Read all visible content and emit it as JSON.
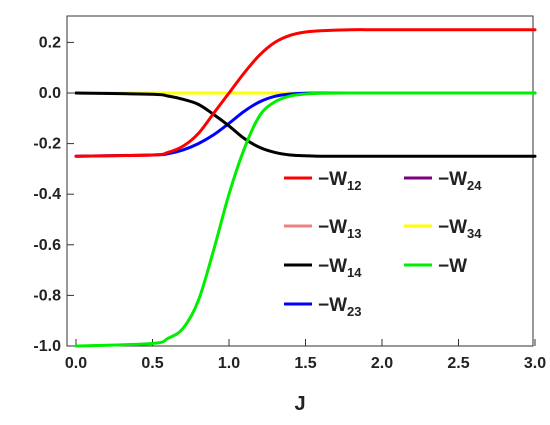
{
  "chart_data": {
    "type": "line",
    "title": "",
    "xlabel": "J",
    "ylabel": "",
    "xlim": [
      0,
      3
    ],
    "ylim": [
      -1,
      0.25
    ],
    "grid": false,
    "legend_position": "lower-right",
    "x_ticks": [
      "0.0",
      "0.5",
      "1.0",
      "1.5",
      "2.0",
      "2.5",
      "3.0"
    ],
    "y_ticks": [
      "0.2",
      "0.0",
      "-0.2",
      "-0.4",
      "-0.6",
      "-0.8",
      "-1.0"
    ],
    "x": [
      0.0,
      0.5,
      0.6,
      0.7,
      0.8,
      0.9,
      1.0,
      1.1,
      1.2,
      1.3,
      1.4,
      1.5,
      1.6,
      1.8,
      2.0,
      2.5,
      3.0
    ],
    "series": [
      {
        "name": "-W12",
        "label_main": "−W",
        "label_sub": "12",
        "color": "#ff0000",
        "values": [
          -0.25,
          -0.245,
          -0.235,
          -0.21,
          -0.16,
          -0.08,
          0.0,
          0.08,
          0.15,
          0.2,
          0.228,
          0.241,
          0.246,
          0.25,
          0.25,
          0.25,
          0.25
        ]
      },
      {
        "name": "-W13",
        "label_main": "−W",
        "label_sub": "13",
        "color": "#f08080",
        "values": [
          0,
          0,
          0,
          0,
          0,
          0,
          0,
          0,
          0,
          0,
          0,
          0,
          0,
          0,
          0,
          0,
          0
        ]
      },
      {
        "name": "-W14",
        "label_main": "−W",
        "label_sub": "14",
        "color": "#000000",
        "values": [
          0.0,
          -0.005,
          -0.012,
          -0.025,
          -0.045,
          -0.085,
          -0.13,
          -0.18,
          -0.215,
          -0.235,
          -0.245,
          -0.248,
          -0.25,
          -0.25,
          -0.25,
          -0.25,
          -0.25
        ]
      },
      {
        "name": "-W23",
        "label_main": "−W",
        "label_sub": "23",
        "color": "#0000ff",
        "values": [
          -0.25,
          -0.245,
          -0.24,
          -0.225,
          -0.2,
          -0.165,
          -0.12,
          -0.072,
          -0.035,
          -0.013,
          -0.004,
          -0.001,
          0.0,
          0.0,
          0.0,
          0.0,
          0.0
        ]
      },
      {
        "name": "-W24",
        "label_main": "−W",
        "label_sub": "24",
        "color": "#7b007b",
        "values": [
          0,
          0,
          0,
          0,
          0,
          0,
          0,
          0,
          0,
          0,
          0,
          0,
          0,
          0,
          0,
          0,
          0
        ]
      },
      {
        "name": "-W34",
        "label_main": "−W",
        "label_sub": "34",
        "color": "#ffff00",
        "values": [
          0,
          0,
          0,
          0,
          0,
          0,
          0,
          0,
          0,
          0,
          0,
          0,
          0,
          0,
          0,
          0,
          0
        ]
      },
      {
        "name": "-W",
        "label_main": "−W",
        "label_sub": "",
        "color": "#00ee00",
        "values": [
          -1.0,
          -0.99,
          -0.97,
          -0.93,
          -0.82,
          -0.62,
          -0.4,
          -0.22,
          -0.09,
          -0.035,
          -0.012,
          -0.004,
          -0.001,
          0.0,
          0.0,
          0.0,
          0.0
        ]
      }
    ]
  }
}
